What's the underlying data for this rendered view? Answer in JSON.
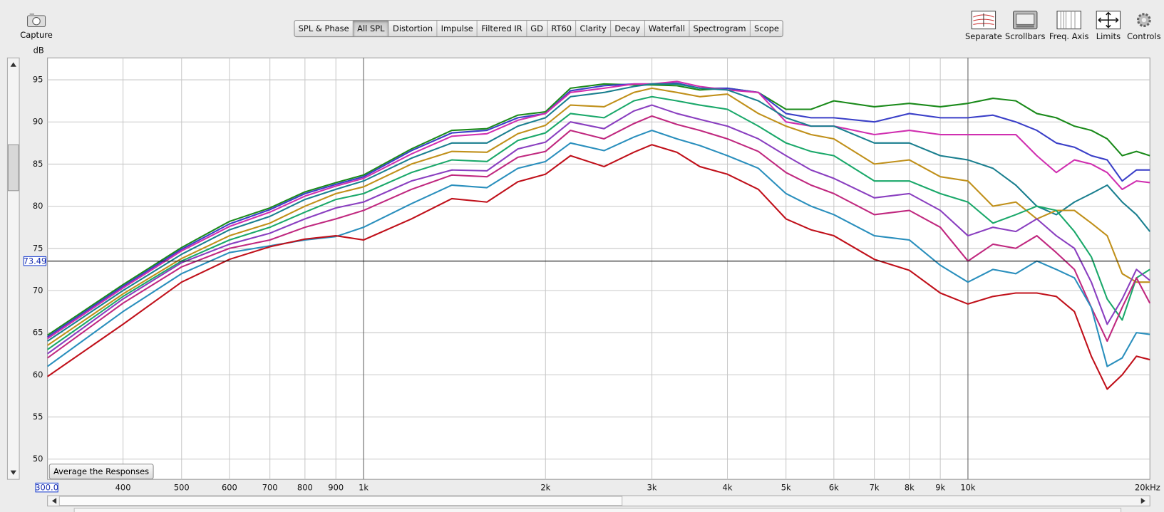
{
  "toolbar": {
    "capture": "Capture",
    "tabs": [
      "SPL & Phase",
      "All SPL",
      "Distortion",
      "Impulse",
      "Filtered IR",
      "GD",
      "RT60",
      "Clarity",
      "Decay",
      "Waterfall",
      "Spectrogram",
      "Scope"
    ],
    "active_tab": 1,
    "view_buttons": [
      "Separate",
      "Scrollbars",
      "Freq. Axis",
      "Limits",
      "Controls"
    ]
  },
  "average_button": "Average the Responses",
  "chart_data": {
    "type": "line",
    "y_label": "dB",
    "log_x": true,
    "grid": true,
    "xlim": [
      300,
      20000
    ],
    "ylim": [
      47.6,
      97.6
    ],
    "xticks": [
      {
        "value": 300,
        "label": "300.0"
      },
      400,
      500,
      600,
      700,
      800,
      900,
      {
        "value": 1000,
        "label": "1k"
      },
      {
        "value": 2000,
        "label": "2k"
      },
      {
        "value": 3000,
        "label": "3k"
      },
      {
        "value": 4000,
        "label": "4k"
      },
      {
        "value": 5000,
        "label": "5k"
      },
      {
        "value": 6000,
        "label": "6k"
      },
      {
        "value": 7000,
        "label": "7k"
      },
      {
        "value": 8000,
        "label": "8k"
      },
      {
        "value": 9000,
        "label": "9k"
      },
      {
        "value": 10000,
        "label": "10k"
      },
      {
        "value": 20000,
        "label": "20kHz"
      }
    ],
    "yticks": [
      50,
      55,
      60,
      65,
      70,
      75,
      80,
      85,
      90,
      95
    ],
    "cursor": 73.49,
    "x": [
      300,
      400,
      500,
      600,
      700,
      800,
      900,
      1000,
      1200,
      1400,
      1600,
      1800,
      2000,
      2200,
      2500,
      2800,
      3000,
      3300,
      3600,
      4000,
      4500,
      5000,
      5500,
      6000,
      7000,
      8000,
      9000,
      10000,
      11000,
      12000,
      13000,
      14000,
      15000,
      16000,
      17000,
      18000,
      19000,
      20000
    ],
    "series": [
      {
        "color": "#1a8a1a",
        "values": [
          64.7,
          70.7,
          75.1,
          78.2,
          79.8,
          81.7,
          82.8,
          83.7,
          86.8,
          89,
          89.2,
          90.8,
          91.2,
          94,
          94.5,
          94.4,
          94.4,
          94.3,
          93.8,
          94,
          93.5,
          91.5,
          91.5,
          92.5,
          91.8,
          92.2,
          91.8,
          92.2,
          92.8,
          92.5,
          91,
          90.5,
          89.5,
          89,
          88,
          86,
          86.5,
          86
        ]
      },
      {
        "color": "#3a3fc8",
        "values": [
          64.5,
          70.5,
          74.9,
          77.9,
          79.6,
          81.5,
          82.6,
          83.5,
          86.6,
          88.7,
          89,
          90.5,
          91,
          93.7,
          94.3,
          94.5,
          94.5,
          94.6,
          94,
          94,
          93.5,
          91,
          90.5,
          90.5,
          90,
          91,
          90.5,
          90.5,
          90.8,
          90,
          89,
          87.5,
          87,
          86,
          85.5,
          83,
          84.3,
          84.3
        ]
      },
      {
        "color": "#d02fb0",
        "values": [
          64.3,
          70.3,
          74.7,
          77.6,
          79.3,
          81.2,
          82.4,
          83.3,
          86.2,
          88.3,
          88.6,
          90.2,
          91,
          93.5,
          94,
          94.5,
          94.5,
          94.8,
          94.2,
          93.8,
          93.5,
          90,
          89.5,
          89.5,
          88.5,
          89,
          88.5,
          88.5,
          88.5,
          88.5,
          86,
          84,
          85.5,
          85,
          84,
          82,
          83,
          82.8
        ]
      },
      {
        "color": "#1a7f8f",
        "values": [
          64,
          70,
          74.3,
          77.2,
          78.8,
          80.8,
          82,
          83,
          85.7,
          87.5,
          87.5,
          89.5,
          90.5,
          93,
          93.5,
          94.2,
          94.5,
          94.5,
          94,
          93.8,
          92.5,
          90.5,
          89.5,
          89.5,
          87.5,
          87.5,
          86,
          85.5,
          84.5,
          82.5,
          80,
          79,
          80.5,
          81.5,
          82.5,
          80.5,
          79,
          77
        ]
      },
      {
        "color": "#c0901a",
        "values": [
          63.5,
          69.6,
          73.8,
          76.5,
          78,
          80,
          81.5,
          82.3,
          85,
          86.5,
          86.4,
          88.6,
          89.6,
          92,
          91.8,
          93.5,
          94,
          93.5,
          93,
          93.3,
          91,
          89.5,
          88.5,
          88,
          85,
          85.5,
          83.5,
          83,
          80,
          80.5,
          78.5,
          79.5,
          79.5,
          78,
          76.5,
          72,
          71,
          71
        ]
      },
      {
        "color": "#1aa86a",
        "values": [
          63,
          69.3,
          73.5,
          76,
          77.5,
          79.3,
          80.8,
          81.5,
          84,
          85.5,
          85.3,
          87.8,
          88.7,
          91,
          90.5,
          92.5,
          93,
          92.5,
          92,
          91.5,
          89.5,
          87.5,
          86.5,
          86,
          83,
          83,
          81.5,
          80.5,
          78,
          79,
          80,
          79.5,
          77,
          74,
          69,
          66.5,
          71.5,
          72.5
        ]
      },
      {
        "color": "#8a3fc0",
        "values": [
          62.5,
          69,
          73.3,
          75.5,
          76.8,
          78.5,
          79.8,
          80.5,
          83,
          84.3,
          84.2,
          86.8,
          87.6,
          90,
          89.2,
          91.3,
          92,
          91,
          90.3,
          89.5,
          88,
          86,
          84.3,
          83.3,
          81,
          81.5,
          79.5,
          76.5,
          77.5,
          77,
          78.5,
          76.5,
          75,
          71,
          66,
          69,
          72.5,
          71.2
        ]
      },
      {
        "color": "#c0287f",
        "values": [
          62,
          68.5,
          72.8,
          75,
          76,
          77.5,
          78.5,
          79.5,
          82,
          83.7,
          83.5,
          85.8,
          86.5,
          89,
          88,
          89.8,
          90.7,
          89.7,
          89,
          88,
          86.5,
          84,
          82.5,
          81.5,
          79,
          79.5,
          77.5,
          73.5,
          75.5,
          75,
          76.5,
          74.5,
          72.5,
          68,
          64,
          68,
          71.5,
          68.5
        ]
      },
      {
        "color": "#2a8fbd",
        "values": [
          61,
          67.5,
          72,
          74.5,
          75.3,
          76,
          76.4,
          77.5,
          80.3,
          82.5,
          82.2,
          84.5,
          85.3,
          87.5,
          86.6,
          88.2,
          89,
          88,
          87.2,
          86,
          84.5,
          81.5,
          80,
          79,
          76.5,
          76,
          73,
          71,
          72.5,
          72,
          73.5,
          72.5,
          71.5,
          68,
          61,
          62,
          65,
          64.8
        ]
      },
      {
        "color": "#c0101a",
        "values": [
          59.8,
          66,
          71,
          73.7,
          75.2,
          76.1,
          76.5,
          76,
          78.5,
          80.9,
          80.5,
          82.9,
          83.8,
          86,
          84.7,
          86.4,
          87.3,
          86.4,
          84.7,
          83.8,
          82,
          78.5,
          77.2,
          76.5,
          73.7,
          72.4,
          69.7,
          68.4,
          69.3,
          69.7,
          69.7,
          69.3,
          67.5,
          62.2,
          58.3,
          60,
          62.2,
          61.8
        ]
      }
    ]
  }
}
